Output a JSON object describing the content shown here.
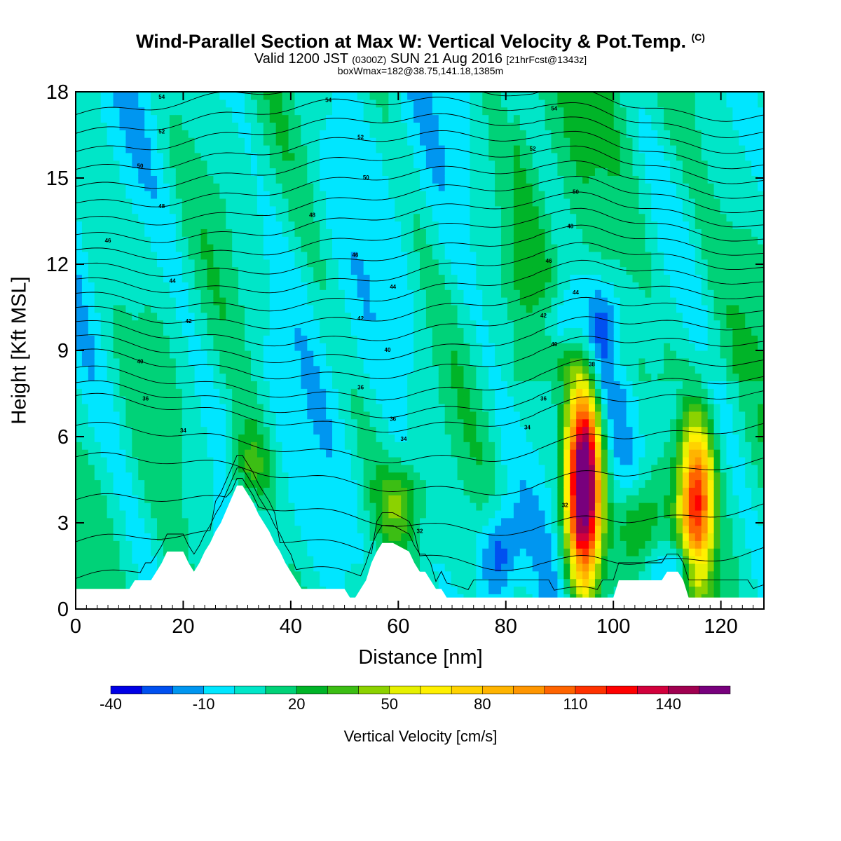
{
  "header": {
    "title": "Wind-Parallel Section at Max W: Vertical Velocity & Pot.Temp.",
    "title_mark": "(C)",
    "valid_main": "Valid 1200 JST",
    "valid_utc": "(0300Z)",
    "valid_date": "SUN 21 Aug 2016",
    "valid_fcst": "[21hrFcst@1343z]",
    "box_info": "boxWmax=182@38.75,141.18,1385m"
  },
  "chart_data": {
    "type": "heatmap",
    "title": "Wind-Parallel Section at Max W: Vertical Velocity & Pot.Temp.",
    "xlabel": "Distance [nm]",
    "ylabel": "Height [Kft MSL]",
    "xlim": [
      0,
      128
    ],
    "ylim": [
      0,
      18
    ],
    "x_ticks": [
      0,
      20,
      40,
      60,
      80,
      100,
      120
    ],
    "y_ticks": [
      0,
      3,
      6,
      9,
      12,
      15,
      18
    ],
    "colorbar": {
      "label": "Vertical Velocity [cm/s]",
      "levels": [
        -40,
        -30,
        -20,
        -10,
        0,
        10,
        20,
        30,
        40,
        50,
        60,
        70,
        80,
        90,
        100,
        110,
        120,
        130,
        140,
        150,
        160
      ],
      "tick_labels": [
        "-40",
        "-10",
        "20",
        "50",
        "80",
        "110",
        "140"
      ],
      "colors": [
        "#0000e6",
        "#0050f0",
        "#0096f0",
        "#00e6ff",
        "#00e6c8",
        "#00d278",
        "#00b428",
        "#3cbe14",
        "#8cd200",
        "#e6f000",
        "#fff000",
        "#ffd200",
        "#ffb400",
        "#ff9600",
        "#ff6400",
        "#ff3200",
        "#ff0000",
        "#d2003c",
        "#a00050",
        "#78007d"
      ]
    },
    "updraft_cores": [
      {
        "x": 94.5,
        "z_base": 1.0,
        "z_top": 7.5,
        "w_max": 182
      },
      {
        "x": 115.5,
        "z_base": 1.0,
        "z_top": 6.5,
        "w_max": 110
      },
      {
        "x": 105,
        "z_base": 1.5,
        "z_top": 4.5,
        "w_max": 40
      },
      {
        "x": 32,
        "z_base": 3.5,
        "z_top": 6.3,
        "w_max": 30
      },
      {
        "x": 60.5,
        "z_base": 2.5,
        "z_top": 5.0,
        "w_max": 30
      }
    ],
    "downdraft_cores": [
      {
        "x": 79,
        "z_base": 0.5,
        "z_top": 3.5,
        "w_min": -35
      },
      {
        "x": 98,
        "z_base": 8.0,
        "z_top": 11.5,
        "w_min": -30
      },
      {
        "x": 90,
        "z_base": 9.0,
        "z_top": 11.0,
        "w_min": -25
      },
      {
        "x": 113,
        "z_base": 0.7,
        "z_top": 2.3,
        "w_min": -30
      }
    ],
    "terrain": {
      "x": [
        0,
        10,
        11,
        14,
        15,
        16,
        17,
        20,
        21,
        22,
        23,
        24,
        25,
        26,
        27,
        30,
        31,
        32,
        33,
        34,
        35,
        36,
        37,
        38,
        39,
        40,
        41,
        42,
        43,
        44,
        50,
        51,
        52,
        53,
        54,
        55,
        56,
        57,
        59,
        62,
        63,
        64,
        65,
        66,
        67,
        68,
        69,
        70,
        71,
        81,
        82,
        90,
        100,
        101,
        104,
        105,
        109,
        110,
        112,
        113,
        114,
        128
      ],
      "z": [
        0.7,
        0.7,
        1.0,
        1.0,
        1.3,
        1.6,
        2.0,
        2.0,
        1.6,
        1.3,
        1.6,
        2.0,
        2.3,
        2.7,
        3.0,
        4.3,
        4.3,
        4.0,
        3.7,
        3.3,
        3.0,
        2.7,
        2.3,
        2.0,
        1.6,
        1.3,
        1.0,
        0.7,
        0.7,
        0.7,
        0.7,
        0.4,
        0.4,
        0.7,
        1.0,
        1.6,
        2.0,
        2.3,
        2.3,
        2.0,
        1.6,
        1.3,
        1.3,
        1.0,
        0.7,
        0.7,
        0.4,
        0.4,
        0.4,
        0.4,
        0.4,
        0.4,
        0.4,
        1.0,
        1.0,
        1.0,
        1.0,
        1.3,
        1.3,
        1.0,
        0.4,
        0.4
      ]
    },
    "theta_labels": [
      {
        "text": "54",
        "x": 16,
        "z": 17.8
      },
      {
        "text": "54",
        "x": 47,
        "z": 17.7
      },
      {
        "text": "54",
        "x": 89,
        "z": 17.4
      },
      {
        "text": "52",
        "x": 16,
        "z": 16.6
      },
      {
        "text": "52",
        "x": 53,
        "z": 16.4
      },
      {
        "text": "52",
        "x": 85,
        "z": 16.0
      },
      {
        "text": "50",
        "x": 12,
        "z": 15.4
      },
      {
        "text": "50",
        "x": 54,
        "z": 15.0
      },
      {
        "text": "50",
        "x": 93,
        "z": 14.5
      },
      {
        "text": "48",
        "x": 16,
        "z": 14.0
      },
      {
        "text": "48",
        "x": 44,
        "z": 13.7
      },
      {
        "text": "48",
        "x": 92,
        "z": 13.3
      },
      {
        "text": "46",
        "x": 6,
        "z": 12.8
      },
      {
        "text": "46",
        "x": 52,
        "z": 12.3
      },
      {
        "text": "46",
        "x": 88,
        "z": 12.1
      },
      {
        "text": "44",
        "x": 18,
        "z": 11.4
      },
      {
        "text": "44",
        "x": 59,
        "z": 11.2
      },
      {
        "text": "44",
        "x": 93,
        "z": 11.0
      },
      {
        "text": "42",
        "x": 21,
        "z": 10.0
      },
      {
        "text": "42",
        "x": 53,
        "z": 10.1
      },
      {
        "text": "42",
        "x": 87,
        "z": 10.2
      },
      {
        "text": "40",
        "x": 12,
        "z": 8.6
      },
      {
        "text": "40",
        "x": 58,
        "z": 9.0
      },
      {
        "text": "40",
        "x": 89,
        "z": 9.2
      },
      {
        "text": "38",
        "x": 96,
        "z": 8.5
      },
      {
        "text": "36",
        "x": 13,
        "z": 7.3
      },
      {
        "text": "36",
        "x": 53,
        "z": 7.7
      },
      {
        "text": "36",
        "x": 87,
        "z": 7.3
      },
      {
        "text": "36",
        "x": 59,
        "z": 6.6
      },
      {
        "text": "34",
        "x": 20,
        "z": 6.2
      },
      {
        "text": "34",
        "x": 61,
        "z": 5.9
      },
      {
        "text": "34",
        "x": 84,
        "z": 6.3
      },
      {
        "text": "32",
        "x": 64,
        "z": 2.7
      },
      {
        "text": "32",
        "x": 91,
        "z": 3.6
      }
    ],
    "theta_lines_z_at_x0": [
      0.9,
      2.0,
      3.3,
      4.7,
      5.8,
      6.9,
      7.4,
      8.0,
      8.7,
      9.3,
      9.9,
      10.5,
      11.1,
      11.7,
      12.3,
      12.9,
      13.5,
      14.1,
      14.7,
      15.3,
      15.9,
      16.5,
      17.1,
      17.7
    ]
  }
}
